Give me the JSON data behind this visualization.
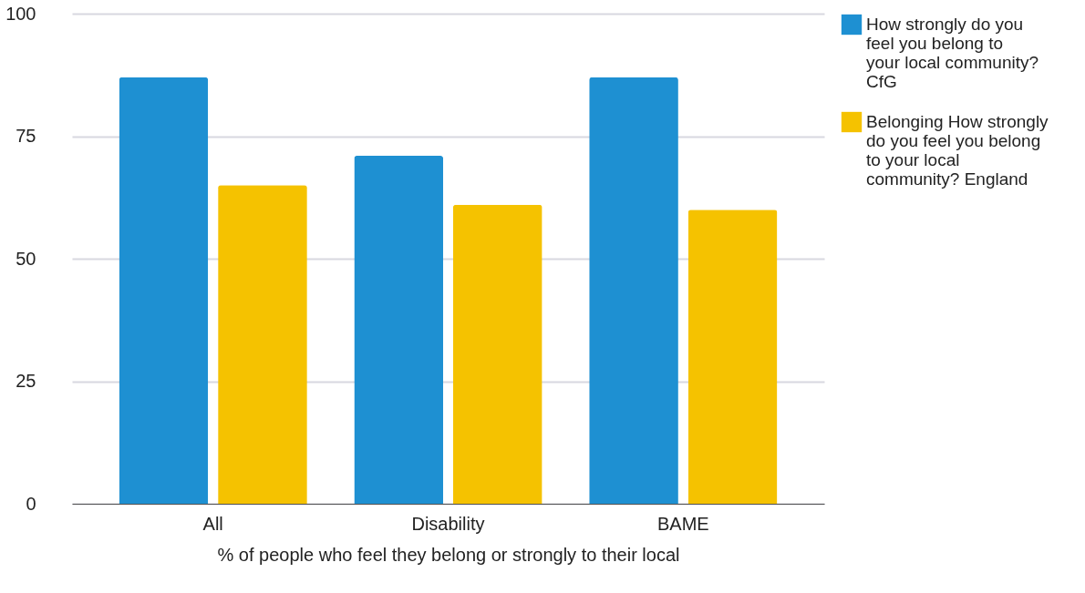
{
  "chart_data": {
    "type": "bar",
    "xlabel": "% of people who feel they belong or strongly to their local",
    "categories": [
      "All",
      "Disability",
      "BAME"
    ],
    "series": [
      {
        "name": "How strongly do you feel you belong to your local community? CfG",
        "color": "#1e90d2",
        "values": [
          87,
          71,
          87
        ]
      },
      {
        "name": "Belonging How strongly do you feel you belong to your local community? England",
        "color": "#f5c200",
        "values": [
          65,
          61,
          60
        ]
      }
    ],
    "ylim": [
      0,
      100
    ],
    "yticks": [
      0,
      25,
      50,
      75,
      100
    ],
    "grid": "y",
    "legend": "right"
  }
}
